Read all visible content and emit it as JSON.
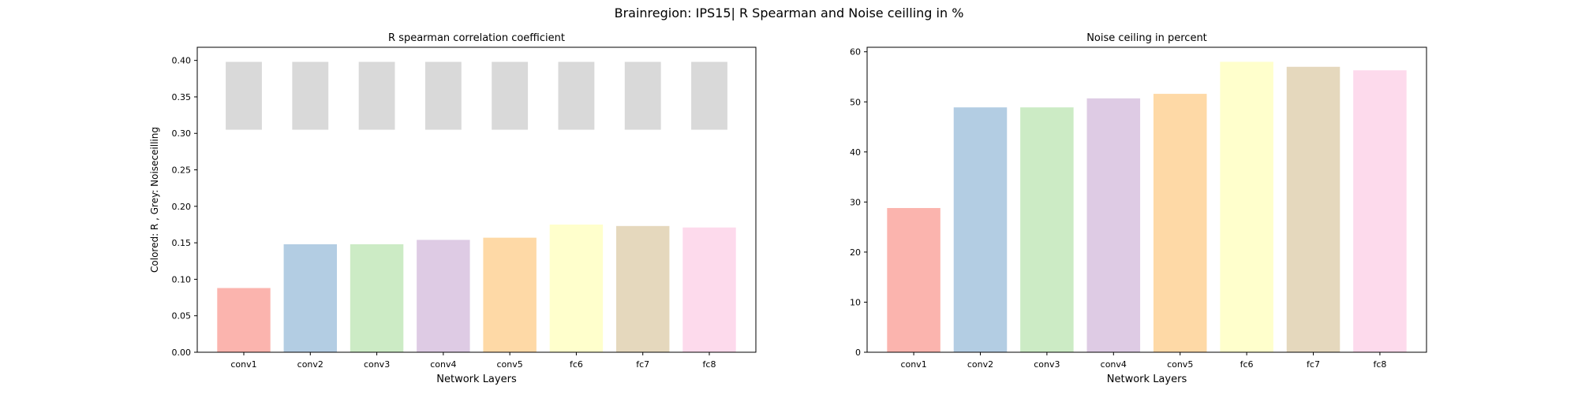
{
  "figure": {
    "title": "Brainregion: IPS15| R Spearman and Noise ceilling in %"
  },
  "chart_data": [
    {
      "type": "bar",
      "title": "R spearman correlation coefficient",
      "xlabel": "Network Layers",
      "ylabel": "Colored: R , Grey: Noiseceilling",
      "categories": [
        "conv1",
        "conv2",
        "conv3",
        "conv4",
        "conv5",
        "fc6",
        "fc7",
        "fc8"
      ],
      "series": [
        {
          "values": [
            0.088,
            0.148,
            0.148,
            0.154,
            0.157,
            0.175,
            0.173,
            0.171
          ]
        },
        {
          "type": "floating-bar",
          "bottom": [
            0.305,
            0.305,
            0.305,
            0.305,
            0.305,
            0.305,
            0.305,
            0.305
          ],
          "top": [
            0.398,
            0.398,
            0.398,
            0.398,
            0.398,
            0.398,
            0.398,
            0.398
          ]
        }
      ],
      "ylim": [
        0,
        0.418
      ],
      "yticks": [
        "0.00",
        "0.05",
        "0.10",
        "0.15",
        "0.20",
        "0.25",
        "0.30",
        "0.35",
        "0.40"
      ],
      "grid": false
    },
    {
      "type": "bar",
      "title": "Noise ceiling in percent",
      "xlabel": "Network Layers",
      "ylabel": "",
      "categories": [
        "conv1",
        "conv2",
        "conv3",
        "conv4",
        "conv5",
        "fc6",
        "fc7",
        "fc8"
      ],
      "series": [
        {
          "values": [
            28.8,
            48.9,
            48.9,
            50.7,
            51.6,
            58.0,
            57.0,
            56.3
          ]
        }
      ],
      "ylim": [
        0,
        60.9
      ],
      "yticks": [
        "0",
        "10",
        "20",
        "30",
        "40",
        "50",
        "60"
      ],
      "grid": false
    }
  ],
  "colors": {
    "bars": [
      "#fbb4ae",
      "#b3cde3",
      "#ccebc5",
      "#decbe4",
      "#fed9a6",
      "#ffffcc",
      "#e5d8bd",
      "#fddaec"
    ],
    "noise_ceiling": "#d9d9d9",
    "axes": "#000000"
  }
}
